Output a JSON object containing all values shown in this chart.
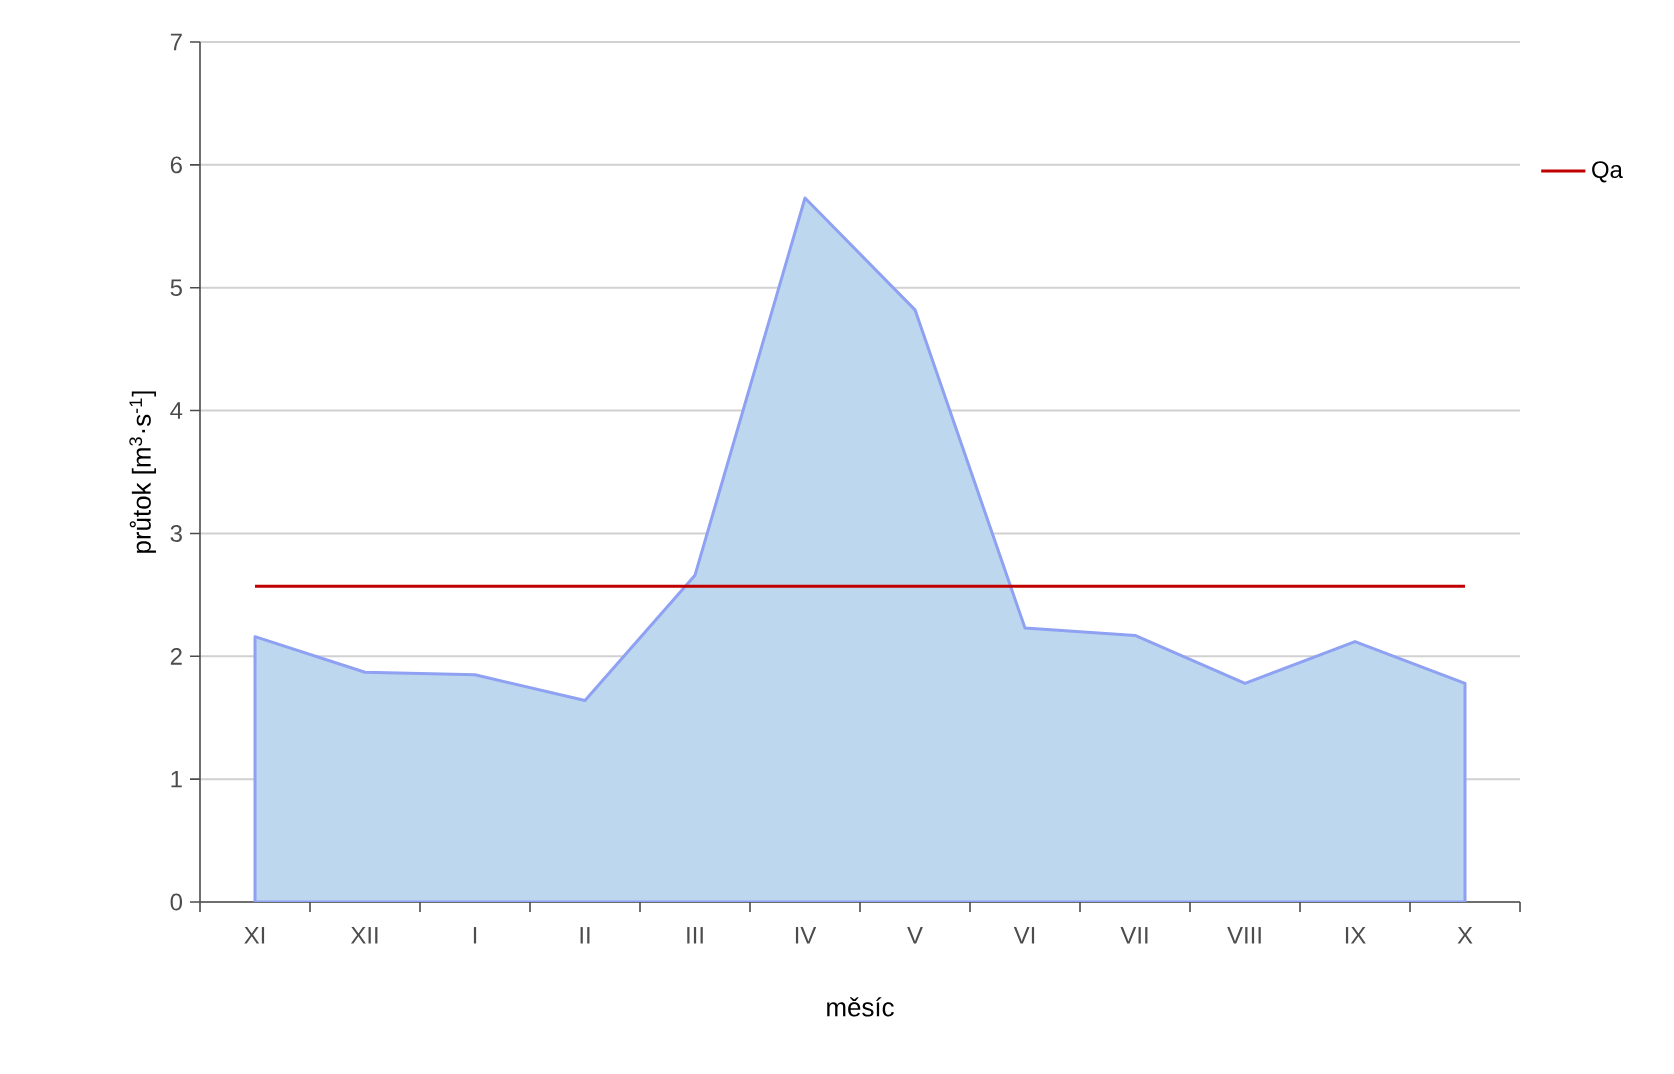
{
  "chart_data": {
    "type": "area",
    "xlabel": "měsíc",
    "ylabel": "průtok  [m$^{3}$·s$^{-1}$]",
    "categories": [
      "XI",
      "XII",
      "I",
      "II",
      "III",
      "IV",
      "V",
      "VI",
      "VII",
      "VIII",
      "IX",
      "X"
    ],
    "series": [
      {
        "color": "#bdd7ee",
        "values": [
          2.16,
          1.87,
          1.85,
          1.64,
          2.66,
          5.73,
          4.82,
          2.23,
          2.17,
          1.78,
          2.12,
          1.78
        ]
      },
      {
        "name": "Qa",
        "type": "line",
        "color": "#c00000",
        "values": [
          2.57,
          2.57,
          2.57,
          2.57,
          2.57,
          2.57,
          2.57,
          2.57,
          2.57,
          2.57,
          2.57,
          2.57
        ]
      }
    ],
    "ylim": [
      0,
      7
    ],
    "yticks": [
      0,
      1,
      2,
      3,
      4,
      5,
      6,
      7
    ],
    "grid": "y",
    "legend": "right"
  }
}
